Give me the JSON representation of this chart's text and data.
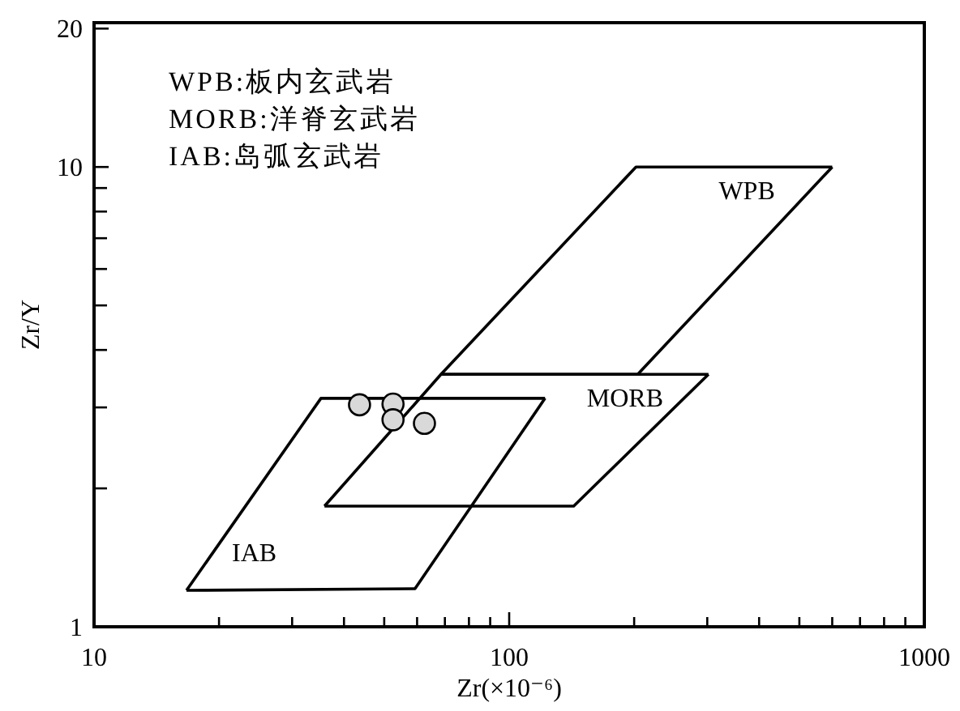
{
  "chart_data": {
    "type": "scatter",
    "xlabel": "Zr(×10⁻⁶)",
    "ylabel": "Zr/Y",
    "log": "xy",
    "xlim": [
      10,
      1000
    ],
    "ylim": [
      1,
      20.6
    ],
    "xticks": [
      10,
      {
        "value": 20,
        "label": null
      },
      {
        "value": 30,
        "label": null
      },
      {
        "value": 40,
        "label": null
      },
      {
        "value": 50,
        "label": null
      },
      {
        "value": 60,
        "label": null
      },
      {
        "value": 70,
        "label": null
      },
      {
        "value": 80,
        "label": null
      },
      {
        "value": 90,
        "label": null
      },
      100,
      {
        "value": 200,
        "label": null
      },
      {
        "value": 300,
        "label": null
      },
      {
        "value": 400,
        "label": null
      },
      {
        "value": 500,
        "label": null
      },
      {
        "value": 600,
        "label": null
      },
      {
        "value": 700,
        "label": null
      },
      {
        "value": 800,
        "label": null
      },
      {
        "value": 900,
        "label": null
      },
      1000
    ],
    "yticks": [
      1,
      {
        "value": 2,
        "label": null
      },
      {
        "value": 3,
        "label": null
      },
      {
        "value": 4,
        "label": null
      },
      {
        "value": 5,
        "label": null
      },
      {
        "value": 6,
        "label": null
      },
      {
        "value": 7,
        "label": null
      },
      {
        "value": 8,
        "label": null
      },
      {
        "value": 9,
        "label": null
      },
      10,
      20
    ],
    "series": [
      {
        "name": "WPB",
        "type": "line",
        "color": "#000000",
        "x": [
          68.5,
          202,
          600
        ],
        "values": [
          3.54,
          10,
          10
        ]
      },
      {
        "type": "line",
        "color": "#000000",
        "x": [
          68.5,
          204,
          600
        ],
        "values": [
          3.54,
          3.54,
          10
        ]
      },
      {
        "name": "MORB",
        "type": "line",
        "color": "#000000",
        "x": [
          35.9,
          68.5,
          302
        ],
        "values": [
          1.83,
          3.54,
          3.54
        ]
      },
      {
        "type": "line",
        "color": "#000000",
        "x": [
          35.9,
          143,
          302
        ],
        "values": [
          1.83,
          1.83,
          3.54
        ]
      },
      {
        "type": "line",
        "color": "#000000",
        "x": [
          16.7,
          35.2,
          122
        ],
        "values": [
          1.2,
          3.14,
          3.14
        ]
      },
      {
        "name": "IAB",
        "type": "line",
        "color": "#000000",
        "x": [
          16.7,
          59.3,
          122
        ],
        "values": [
          1.2,
          1.21,
          3.14
        ]
      },
      {
        "marker": "circle",
        "color": "#d9d9d9",
        "x": [
          43.6,
          52.5,
          52.5,
          62.5
        ],
        "values": [
          3.04,
          3.05,
          2.82,
          2.77
        ]
      }
    ],
    "annotations": [
      "WPB:板内玄武岩",
      "MORB:洋脊玄武岩",
      "IAB:岛弧玄武岩"
    ]
  }
}
